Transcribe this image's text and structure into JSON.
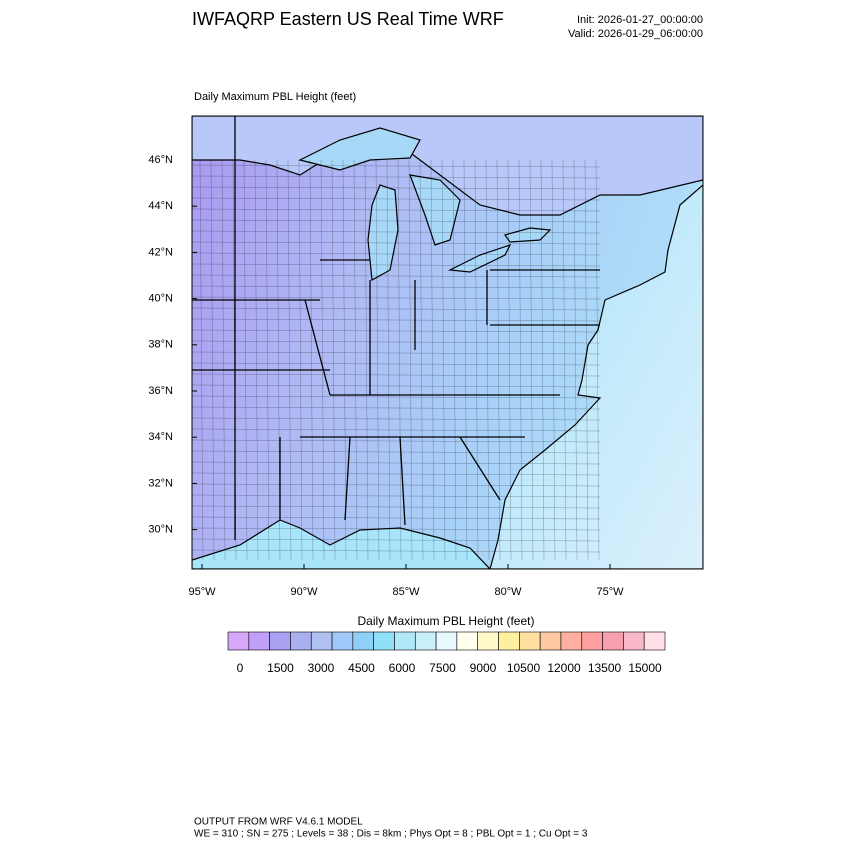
{
  "header": {
    "title": "IWFAQRP Eastern US Real Time WRF",
    "init": "Init: 2026-01-27_00:00:00",
    "valid": "Valid: 2026-01-29_06:00:00"
  },
  "map": {
    "subtitle": "Daily Maximum PBL Height   (feet)",
    "lat_labels": [
      "46°N",
      "44°N",
      "42°N",
      "40°N",
      "38°N",
      "36°N",
      "34°N",
      "32°N",
      "30°N"
    ],
    "lon_labels": [
      "95°W",
      "90°W",
      "85°W",
      "80°W",
      "75°W"
    ]
  },
  "colorbar": {
    "label": "Daily Maximum PBL Height  (feet)",
    "colors": [
      "#d8a8f8",
      "#c0a0f8",
      "#a8a0f0",
      "#a8b0f0",
      "#b0c0f0",
      "#a0c8f8",
      "#90d0f8",
      "#90e0f8",
      "#b0e8f8",
      "#c8f0f8",
      "#e8f8ff",
      "#fffff0",
      "#fff8c8",
      "#fff0a0",
      "#ffe0a0",
      "#ffc8a0",
      "#ffb0a0",
      "#ffa0a0",
      "#f8a0b0",
      "#f8b8c8",
      "#ffe0e8"
    ],
    "tick_labels": [
      "0",
      "1500",
      "3000",
      "4500",
      "6000",
      "7500",
      "9000",
      "10500",
      "12000",
      "13500",
      "15000"
    ]
  },
  "footer": {
    "line1": "OUTPUT FROM WRF V4.6.1 MODEL",
    "line2": "WE = 310 ; SN = 275 ; Levels = 38 ; Dis = 8km ; Phys Opt = 8 ; PBL Opt = 1 ; Cu Opt = 3"
  }
}
